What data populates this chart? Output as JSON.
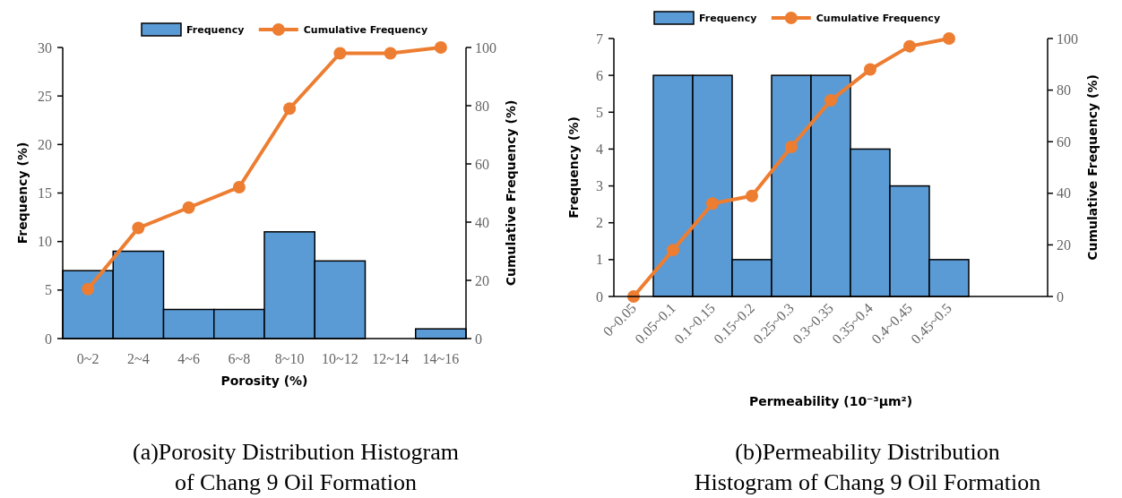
{
  "chart_data": [
    {
      "type": "bar",
      "title": "(a)Porosity Distribution Histogram of Chang 9 Oil Formation",
      "xlabel": "Porosity (%)",
      "ylabel": "Frequency (%)",
      "y2label": "Cumulative Frequency (%)",
      "categories": [
        "0~2",
        "2~4",
        "4~6",
        "6~8",
        "8~10",
        "10~12",
        "12~14",
        "14~16"
      ],
      "series": [
        {
          "name": "Frequency",
          "color": "#5b9bd5",
          "values": [
            7,
            9,
            3,
            3,
            11,
            8,
            0,
            1
          ]
        },
        {
          "name": "Cumulative Frequency",
          "type": "line",
          "axis": "y2",
          "color": "#ed7d31",
          "values": [
            17,
            38,
            45,
            52,
            79,
            98,
            98,
            100
          ]
        }
      ],
      "ylim": [
        0,
        30
      ],
      "yticks": [
        0,
        5,
        10,
        15,
        20,
        25,
        30
      ],
      "y2lim": [
        0,
        100
      ],
      "y2ticks": [
        0,
        20,
        40,
        60,
        80,
        100
      ],
      "legend": "top",
      "marker": "circle"
    },
    {
      "type": "bar",
      "title": "(b)Permeability Distribution Histogram of Chang 9 Oil Formation",
      "xlabel": "Permeability (10⁻³μm²)",
      "ylabel": "Frequency (%)",
      "y2label": "Cumulative Frequency (%)",
      "categories": [
        "0~0.05",
        "0.05~0.1",
        "0.1~0.15",
        "0.15~0.2",
        "0.25~0.3",
        "0.3~0.35",
        "0.35~0.4",
        "0.4~0.45",
        "0.45~0.5",
        null,
        null
      ],
      "series": [
        {
          "name": "Frequency",
          "color": "#5b9bd5",
          "values": [
            0,
            6,
            6,
            1,
            6,
            6,
            4,
            3,
            1,
            null,
            null
          ]
        },
        {
          "name": "Cumulative Frequency",
          "type": "line",
          "axis": "y2",
          "color": "#ed7d31",
          "values": [
            0,
            18,
            36,
            39,
            58,
            76,
            88,
            97,
            100,
            null,
            null
          ]
        }
      ],
      "ylim": [
        0,
        7
      ],
      "yticks": [
        0,
        1,
        2,
        3,
        4,
        5,
        6,
        7
      ],
      "y2lim": [
        0,
        100
      ],
      "y2ticks": [
        0,
        20,
        40,
        60,
        80,
        100
      ],
      "legend": "top",
      "marker": "circle"
    }
  ]
}
